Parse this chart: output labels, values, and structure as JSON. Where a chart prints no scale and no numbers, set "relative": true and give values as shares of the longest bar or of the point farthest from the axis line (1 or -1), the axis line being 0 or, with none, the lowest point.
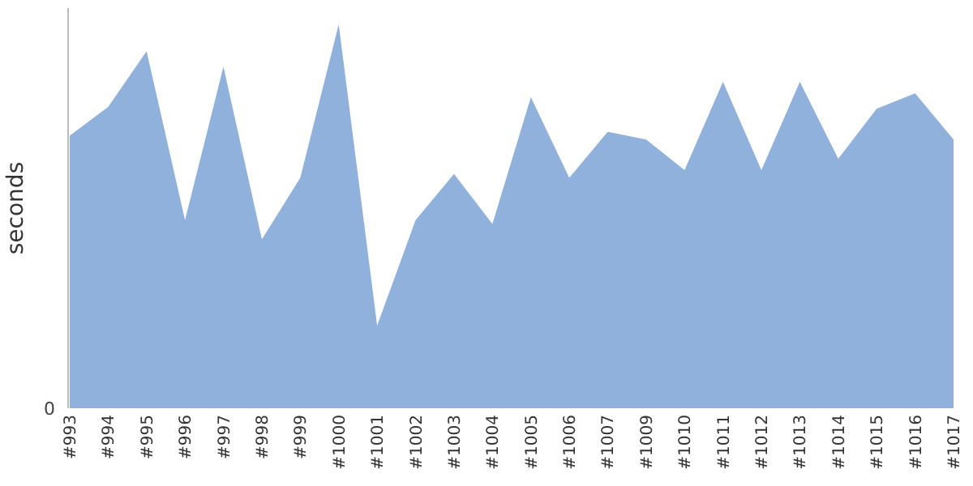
{
  "chart_data": {
    "type": "area",
    "ylabel": "seconds",
    "relative": true,
    "annotations": [
      "0"
    ],
    "categories": [
      "#993",
      "#994",
      "#995",
      "#996",
      "#997",
      "#998",
      "#999",
      "#1000",
      "#1001",
      "#1002",
      "#1003",
      "#1004",
      "#1005",
      "#1006",
      "#1007",
      "#1009",
      "#1010",
      "#1011",
      "#1012",
      "#1013",
      "#1014",
      "#1015",
      "#1016",
      "#1017"
    ],
    "series": [
      {
        "color": "#8fb1db",
        "values": [
          0.71,
          0.785,
          0.93,
          0.49,
          0.89,
          0.44,
          0.6,
          1,
          0.215,
          0.49,
          0.61,
          0.48,
          0.81,
          0.6,
          0.72,
          0.7,
          0.62,
          0.85,
          0.62,
          0.85,
          0.65,
          0.78,
          0.82,
          0.7
        ]
      }
    ]
  }
}
